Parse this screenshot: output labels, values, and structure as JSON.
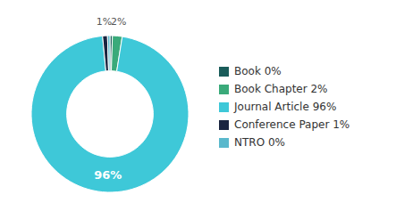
{
  "chart_data": {
    "type": "pie",
    "categories": [
      "Book 0%",
      "Book Chapter 2%",
      "Journal Article 96%",
      "Conference Paper 1%",
      "NTRO 0%"
    ],
    "values": [
      0.5,
      2.0,
      96.0,
      1.0,
      0.5
    ],
    "value_labels": [
      null,
      "2%",
      "96%",
      "1%",
      null
    ],
    "colors": [
      "#1a5c5a",
      "#3aaa7a",
      "#3ec8d8",
      "#1a2540",
      "#5ab8cc"
    ],
    "legend": "right"
  }
}
